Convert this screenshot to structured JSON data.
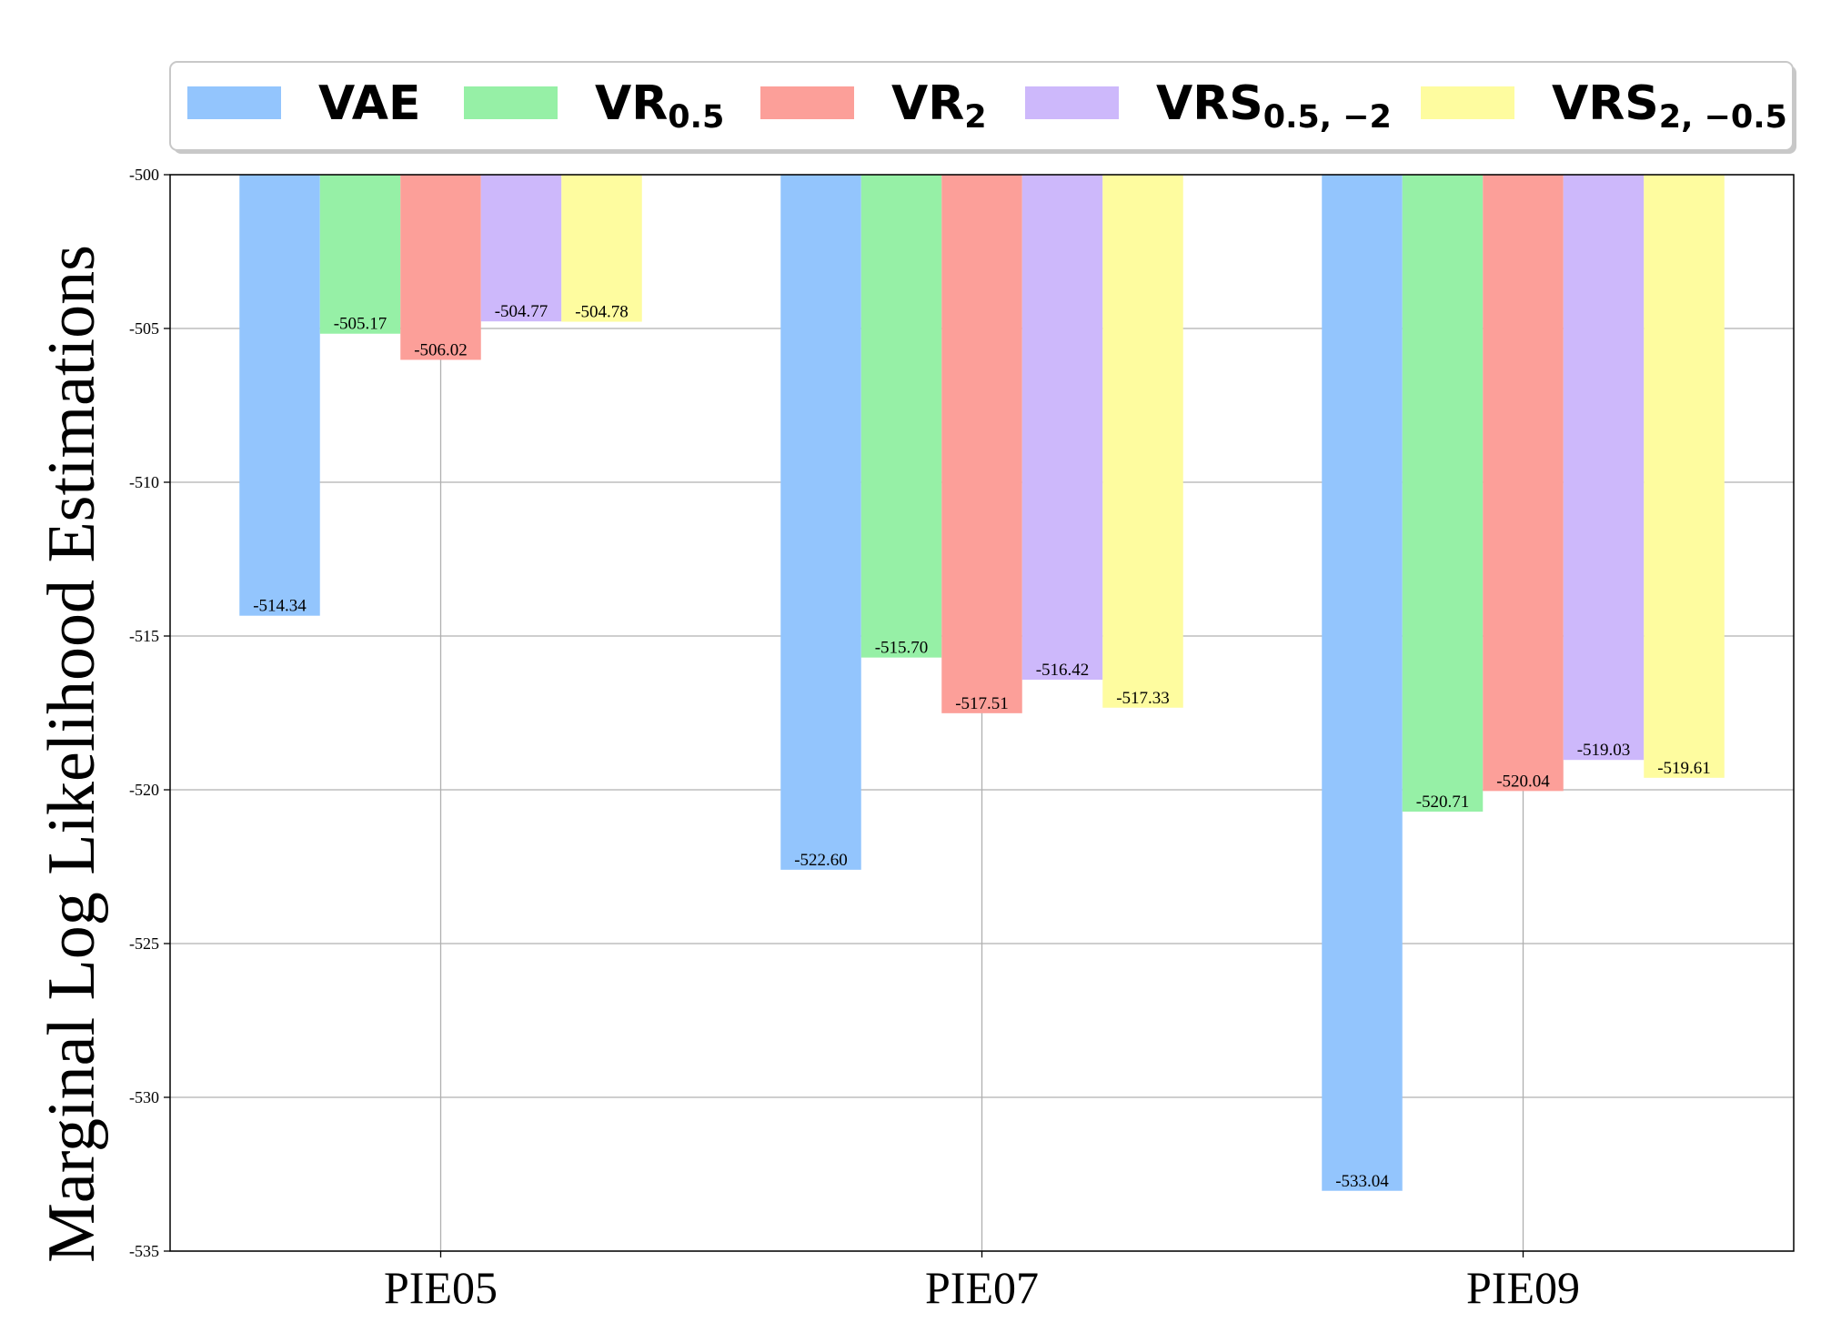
{
  "chart_data": {
    "type": "bar",
    "title": "",
    "xlabel": "",
    "ylabel": "Marginal Log Likelihood Estimations",
    "categories": [
      "PIE05",
      "PIE07",
      "PIE09"
    ],
    "ylim": [
      -535,
      -500
    ],
    "yticks": [
      -500,
      -505,
      -510,
      -515,
      -520,
      -525,
      -530,
      -535
    ],
    "ytick_labels": [
      "-500",
      "-505",
      "-510",
      "-515",
      "-520",
      "-525",
      "-530",
      "-535"
    ],
    "grid": true,
    "legend_position": "top",
    "series": [
      {
        "name": "VAE",
        "name_main": "VAE",
        "name_sub": "",
        "color": "#93c5fd",
        "values": [
          -514.34,
          -522.6,
          -533.04
        ],
        "labels": [
          "-514.34",
          "-522.60",
          "-533.04"
        ]
      },
      {
        "name": "VR0.5",
        "name_main": "VR",
        "name_sub": "0.5",
        "color": "#96f0a6",
        "values": [
          -505.17,
          -515.7,
          -520.71
        ],
        "labels": [
          "-505.17",
          "-515.70",
          "-520.71"
        ]
      },
      {
        "name": "VR2",
        "name_main": "VR",
        "name_sub": "2",
        "color": "#fc9f99",
        "values": [
          -506.02,
          -517.51,
          -520.04
        ],
        "labels": [
          "-506.02",
          "-517.51",
          "-520.04"
        ]
      },
      {
        "name": "VRS0.5,−2",
        "name_main": "VRS",
        "name_sub": "0.5, −2",
        "color": "#cdb8fb",
        "values": [
          -504.77,
          -516.42,
          -519.03
        ],
        "labels": [
          "-504.77",
          "-516.42",
          "-519.03"
        ]
      },
      {
        "name": "VRS2,−0.5",
        "name_main": "VRS",
        "name_sub": "2, −0.5",
        "color": "#fefc9f",
        "values": [
          -504.78,
          -517.33,
          -519.61
        ],
        "labels": [
          "-504.78",
          "-517.33",
          "-519.61"
        ]
      }
    ]
  }
}
